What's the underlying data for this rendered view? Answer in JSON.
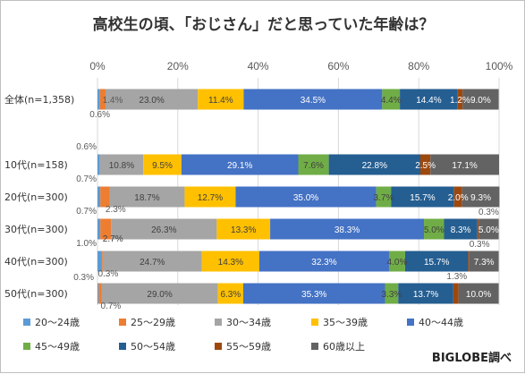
{
  "chart_data": {
    "type": "bar",
    "orientation": "horizontal",
    "stacked": "percent",
    "title": "高校生の頃、「おじさん」だと思っていた年齢は？",
    "source_note": "BIGLOBE調べ",
    "xlim": [
      0,
      100
    ],
    "x_ticks": [
      "0%",
      "20%",
      "40%",
      "60%",
      "80%",
      "100%"
    ],
    "grid": true,
    "legend_position": "bottom",
    "categories": [
      "全体(n=1,358)",
      "10代(n=158)",
      "20代(n=300)",
      "30代(n=300)",
      "40代(n=300)",
      "50代(n=300)"
    ],
    "series": [
      {
        "name": "20～24歳",
        "color": "#5b9bd5",
        "values": [
          0.6,
          0.6,
          0.7,
          0.7,
          1.0,
          0.3
        ],
        "labels": [
          "0.6%",
          "0.6%",
          "0.7%",
          "0.7%",
          "1.0%",
          "0.3%"
        ]
      },
      {
        "name": "25～29歳",
        "color": "#ed7d31",
        "values": [
          1.4,
          0.0,
          2.3,
          2.7,
          0.3,
          0.7
        ],
        "labels": [
          "1.4%",
          "",
          "2.3%",
          "2.7%",
          "0.3%",
          "0.7%"
        ]
      },
      {
        "name": "30～34歳",
        "color": "#a5a5a5",
        "values": [
          23.0,
          10.8,
          18.7,
          26.3,
          24.7,
          29.0
        ],
        "labels": [
          "23.0%",
          "10.8%",
          "18.7%",
          "26.3%",
          "24.7%",
          "29.0%"
        ]
      },
      {
        "name": "35～39歳",
        "color": "#ffc000",
        "values": [
          11.4,
          9.5,
          12.7,
          13.3,
          14.3,
          6.3
        ],
        "labels": [
          "11.4%",
          "9.5%",
          "12.7%",
          "13.3%",
          "14.3%",
          "6.3%"
        ]
      },
      {
        "name": "40～44歳",
        "color": "#4472c4",
        "values": [
          34.5,
          29.1,
          35.0,
          38.3,
          32.3,
          35.3
        ],
        "labels": [
          "34.5%",
          "29.1%",
          "35.0%",
          "38.3%",
          "32.3%",
          "35.3%"
        ]
      },
      {
        "name": "45～49歳",
        "color": "#70ad47",
        "values": [
          4.4,
          7.6,
          3.7,
          5.0,
          4.0,
          3.3
        ],
        "labels": [
          "4.4%",
          "7.6%",
          "3.7%",
          "5.0%",
          "4.0%",
          "3.3%"
        ]
      },
      {
        "name": "50～54歳",
        "color": "#255e91",
        "values": [
          14.4,
          22.8,
          15.7,
          8.3,
          15.7,
          13.7
        ],
        "labels": [
          "14.4%",
          "22.8%",
          "15.7%",
          "8.3%",
          "15.7%",
          "13.7%"
        ]
      },
      {
        "name": "55～59歳",
        "color": "#9e480e",
        "values": [
          1.2,
          2.5,
          2.0,
          0.3,
          0.3,
          1.3
        ],
        "labels": [
          "1.2%",
          "2.5%",
          "2.0%",
          "0.3%",
          "0.3%",
          "1.3%"
        ]
      },
      {
        "name": "60歳以上",
        "color": "#636363",
        "values": [
          9.0,
          17.1,
          9.3,
          5.0,
          7.3,
          10.0
        ],
        "labels": [
          "9.0%",
          "17.1%",
          "9.3%",
          "5.0%",
          "7.3%",
          "10.0%"
        ]
      }
    ]
  }
}
